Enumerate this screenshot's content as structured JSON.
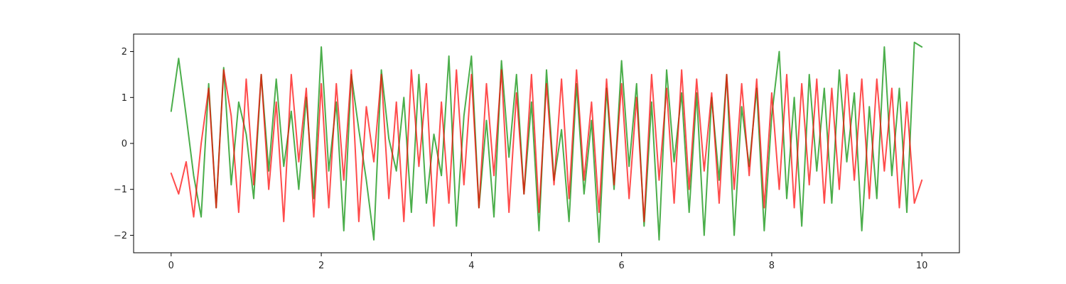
{
  "chart_data": {
    "type": "line",
    "title": "",
    "xlabel": "",
    "ylabel": "",
    "xlim": [
      -0.5,
      10.5
    ],
    "ylim": [
      -2.38,
      2.38
    ],
    "xticks": [
      0,
      2,
      4,
      6,
      8,
      10
    ],
    "xtick_labels": [
      "0",
      "2",
      "4",
      "6",
      "8",
      "10"
    ],
    "yticks": [
      -2,
      -1,
      0,
      1,
      2
    ],
    "ytick_labels": [
      "−2",
      "−1",
      "0",
      "1",
      "2"
    ],
    "grid": false,
    "legend": "none",
    "series": [
      {
        "color": "#2ca02c",
        "alpha": 0.85,
        "x": [
          0,
          0.1,
          0.2,
          0.3,
          0.4,
          0.5,
          0.6,
          0.7,
          0.8,
          0.9,
          1.0,
          1.1,
          1.2,
          1.3,
          1.4,
          1.5,
          1.6,
          1.7,
          1.8,
          1.9,
          2.0,
          2.1,
          2.2,
          2.3,
          2.4,
          2.5,
          2.6,
          2.7,
          2.8,
          2.9,
          3.0,
          3.1,
          3.2,
          3.3,
          3.4,
          3.5,
          3.6,
          3.7,
          3.8,
          3.9,
          4.0,
          4.1,
          4.2,
          4.3,
          4.4,
          4.5,
          4.6,
          4.7,
          4.8,
          4.9,
          5.0,
          5.1,
          5.2,
          5.3,
          5.4,
          5.5,
          5.6,
          5.7,
          5.8,
          5.9,
          6.0,
          6.1,
          6.2,
          6.3,
          6.4,
          6.5,
          6.6,
          6.7,
          6.8,
          6.9,
          7.0,
          7.1,
          7.2,
          7.3,
          7.4,
          7.5,
          7.6,
          7.7,
          7.8,
          7.9,
          8.0,
          8.1,
          8.2,
          8.3,
          8.4,
          8.5,
          8.6,
          8.7,
          8.8,
          8.9,
          9.0,
          9.1,
          9.2,
          9.3,
          9.4,
          9.5,
          9.6,
          9.7,
          9.8,
          9.9,
          10.0
        ],
        "y": [
          0.7,
          1.85,
          0.6,
          -0.7,
          -1.6,
          1.3,
          -1.4,
          1.65,
          -0.9,
          0.9,
          0.2,
          -1.2,
          1.5,
          -0.6,
          1.4,
          -0.5,
          0.7,
          -1.0,
          1.0,
          -1.2,
          2.1,
          -0.6,
          0.9,
          -1.9,
          1.5,
          0.3,
          -0.8,
          -2.1,
          1.6,
          0.1,
          -0.6,
          1.0,
          -1.5,
          1.5,
          -1.3,
          0.2,
          -0.7,
          1.9,
          -1.8,
          0.6,
          1.9,
          -1.4,
          0.5,
          -1.6,
          1.8,
          -0.3,
          1.5,
          -1.1,
          0.9,
          -1.9,
          1.6,
          -0.8,
          0.3,
          -1.7,
          1.3,
          -1.1,
          0.5,
          -2.15,
          1.2,
          -1.0,
          1.8,
          -0.5,
          1.3,
          -1.8,
          0.9,
          -2.1,
          1.6,
          -0.4,
          1.1,
          -1.5,
          1.1,
          -2.0,
          1.0,
          -0.8,
          1.5,
          -2.0,
          0.8,
          -0.5,
          1.2,
          -1.9,
          0.6,
          2.0,
          -1.2,
          1.0,
          -1.8,
          1.5,
          -0.6,
          1.2,
          -1.3,
          1.6,
          -0.4,
          1.1,
          -1.9,
          0.8,
          -1.2,
          2.1,
          -0.7,
          1.2,
          -1.5,
          2.2,
          2.1
        ]
      },
      {
        "color": "#ff0000",
        "alpha": 0.7,
        "x": [
          0,
          0.1,
          0.2,
          0.3,
          0.4,
          0.5,
          0.6,
          0.7,
          0.8,
          0.9,
          1.0,
          1.1,
          1.2,
          1.3,
          1.4,
          1.5,
          1.6,
          1.7,
          1.8,
          1.9,
          2.0,
          2.1,
          2.2,
          2.3,
          2.4,
          2.5,
          2.6,
          2.7,
          2.8,
          2.9,
          3.0,
          3.1,
          3.2,
          3.3,
          3.4,
          3.5,
          3.6,
          3.7,
          3.8,
          3.9,
          4.0,
          4.1,
          4.2,
          4.3,
          4.4,
          4.5,
          4.6,
          4.7,
          4.8,
          4.9,
          5.0,
          5.1,
          5.2,
          5.3,
          5.4,
          5.5,
          5.6,
          5.7,
          5.8,
          5.9,
          6.0,
          6.1,
          6.2,
          6.3,
          6.4,
          6.5,
          6.6,
          6.7,
          6.8,
          6.9,
          7.0,
          7.1,
          7.2,
          7.3,
          7.4,
          7.5,
          7.6,
          7.7,
          7.8,
          7.9,
          8.0,
          8.1,
          8.2,
          8.3,
          8.4,
          8.5,
          8.6,
          8.7,
          8.8,
          8.9,
          9.0,
          9.1,
          9.2,
          9.3,
          9.4,
          9.5,
          9.6,
          9.7,
          9.8,
          9.9,
          10.0
        ],
        "y": [
          -0.65,
          -1.1,
          -0.4,
          -1.6,
          0.0,
          1.2,
          -1.4,
          1.6,
          0.6,
          -1.5,
          1.4,
          -0.9,
          1.5,
          -1.0,
          0.9,
          -1.7,
          1.5,
          -0.4,
          1.2,
          -1.6,
          1.3,
          -1.4,
          1.3,
          -0.8,
          1.6,
          -1.7,
          0.8,
          -0.4,
          1.5,
          -1.2,
          0.9,
          -1.7,
          1.6,
          -0.5,
          1.3,
          -1.8,
          0.9,
          -1.3,
          1.6,
          -0.9,
          1.5,
          -1.4,
          1.3,
          -0.7,
          1.6,
          -1.5,
          1.1,
          -1.1,
          1.5,
          -1.5,
          1.3,
          -0.9,
          1.4,
          -1.2,
          1.6,
          -0.8,
          0.9,
          -1.5,
          1.4,
          -0.9,
          1.3,
          -1.2,
          1.0,
          -1.7,
          1.5,
          -0.8,
          1.2,
          -1.3,
          1.6,
          -1.0,
          1.4,
          -0.6,
          1.1,
          -1.3,
          1.5,
          -1.0,
          1.3,
          -0.7,
          1.4,
          -1.4,
          1.1,
          -1.0,
          1.5,
          -1.4,
          1.3,
          -0.9,
          1.4,
          -1.3,
          1.2,
          -1.0,
          1.5,
          -0.8,
          1.4,
          -1.2,
          1.4,
          -0.6,
          1.2,
          -1.4,
          0.9,
          -1.3,
          -0.8
        ]
      }
    ]
  }
}
